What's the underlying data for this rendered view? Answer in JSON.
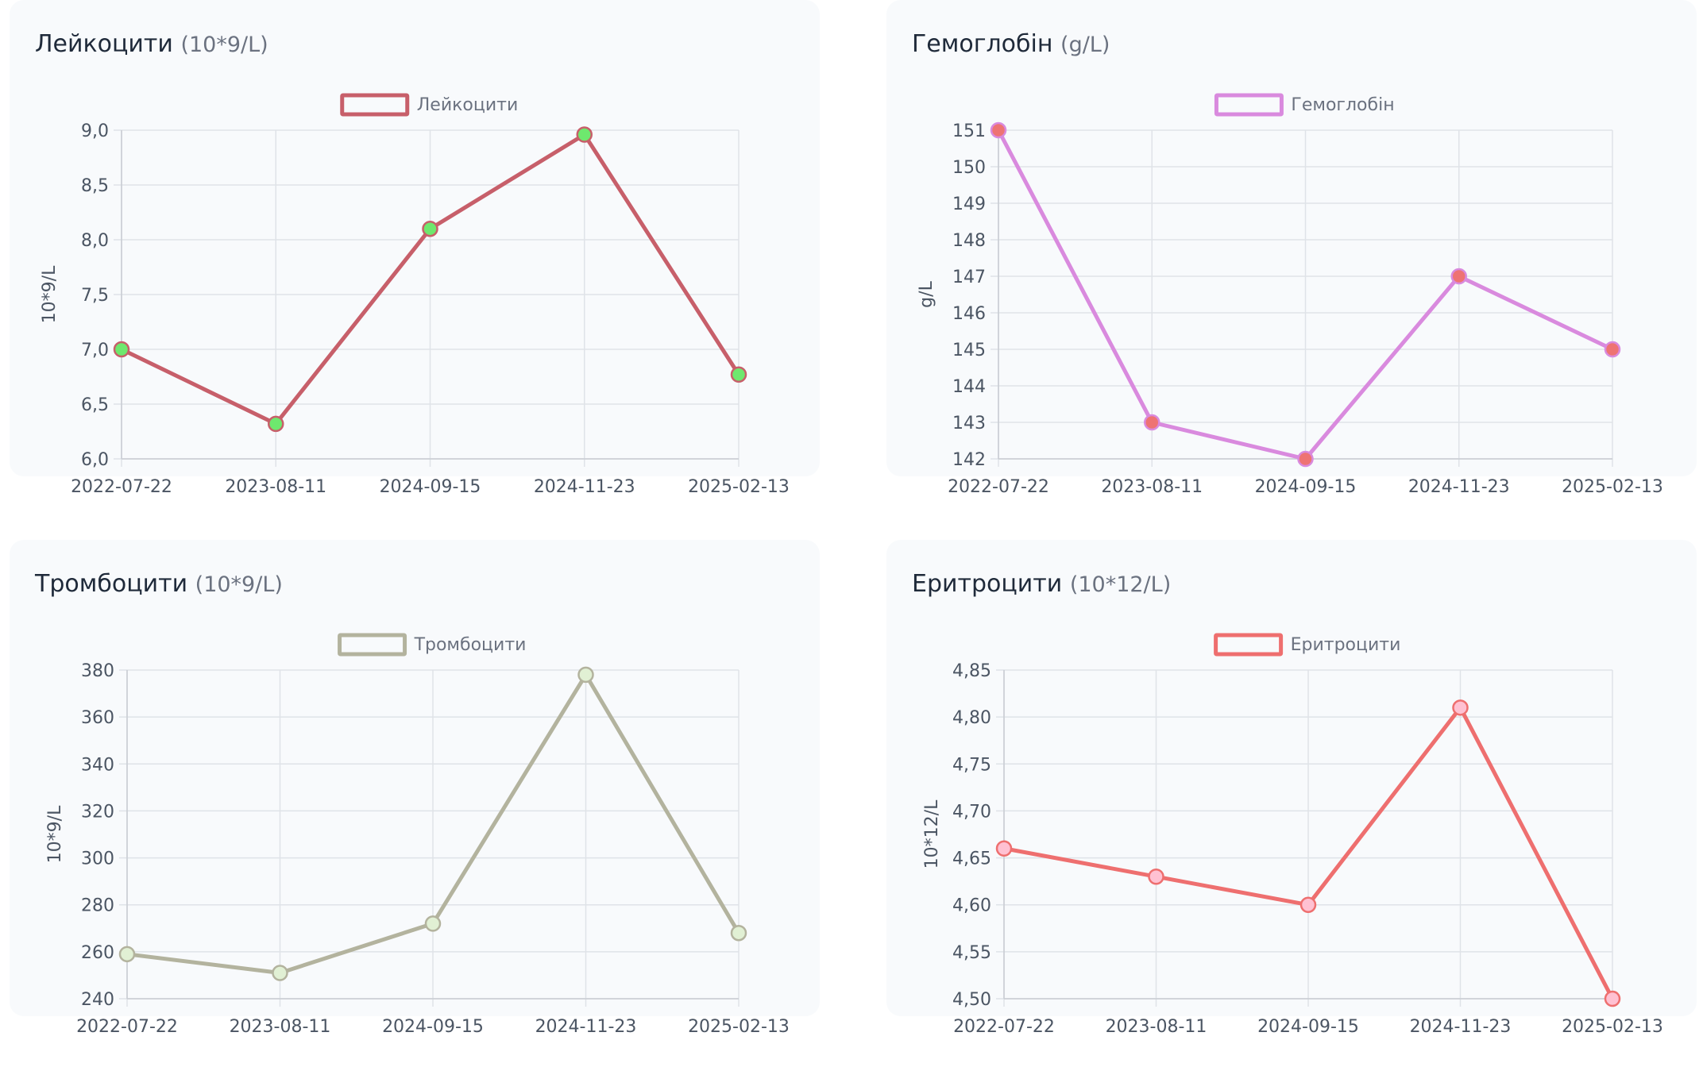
{
  "chart_data": [
    {
      "type": "line",
      "title": "Лейкоцити",
      "unit": "(10*9/L)",
      "legend": "Лейкоцити",
      "ylabel": "10*9/L",
      "categories": [
        "2022-07-22",
        "2023-08-11",
        "2024-09-15",
        "2024-11-23",
        "2025-02-13"
      ],
      "values": [
        7.0,
        6.32,
        8.1,
        8.96,
        6.77
      ],
      "ylim": [
        6.0,
        9.0
      ],
      "yticks": [
        "6,0",
        "6,5",
        "7,0",
        "7,5",
        "8,0",
        "8,5",
        "9,0"
      ],
      "line_color": "#c75f6a",
      "point_color": "#6ee86e",
      "legend_placement": "top-center",
      "grid": true
    },
    {
      "type": "line",
      "title": "Гемоглобін",
      "unit": "(g/L)",
      "legend": "Гемоглобін",
      "ylabel": "g/L",
      "categories": [
        "2022-07-22",
        "2023-08-11",
        "2024-09-15",
        "2024-11-23",
        "2025-02-13"
      ],
      "values": [
        151,
        143,
        142,
        147,
        145
      ],
      "ylim": [
        142,
        151
      ],
      "yticks": [
        "142",
        "143",
        "144",
        "145",
        "146",
        "147",
        "148",
        "149",
        "150",
        "151"
      ],
      "line_color": "#d98ade",
      "point_color": "#ee7373",
      "legend_placement": "top-center",
      "grid": true
    },
    {
      "type": "line",
      "title": "Тромбоцити",
      "unit": "(10*9/L)",
      "legend": "Тромбоцити",
      "ylabel": "10*9/L",
      "categories": [
        "2022-07-22",
        "2023-08-11",
        "2024-09-15",
        "2024-11-23",
        "2025-02-13"
      ],
      "values": [
        259,
        251,
        272,
        378,
        268
      ],
      "ylim": [
        240,
        380
      ],
      "yticks": [
        "240",
        "260",
        "280",
        "300",
        "320",
        "340",
        "360",
        "380"
      ],
      "line_color": "#b3b39e",
      "point_color": "#e1f0d4",
      "legend_placement": "top-center",
      "grid": true
    },
    {
      "type": "line",
      "title": "Еритроцити",
      "unit": "(10*12/L)",
      "legend": "Еритроцити",
      "ylabel": "10*12/L",
      "categories": [
        "2022-07-22",
        "2023-08-11",
        "2024-09-15",
        "2024-11-23",
        "2025-02-13"
      ],
      "values": [
        4.66,
        4.63,
        4.6,
        4.81,
        4.5
      ],
      "ylim": [
        4.5,
        4.85
      ],
      "yticks": [
        "4,50",
        "4,55",
        "4,60",
        "4,65",
        "4,70",
        "4,75",
        "4,80",
        "4,85"
      ],
      "line_color": "#ee6f6f",
      "point_color": "#ffc1d2",
      "legend_placement": "top-center",
      "grid": true
    }
  ]
}
